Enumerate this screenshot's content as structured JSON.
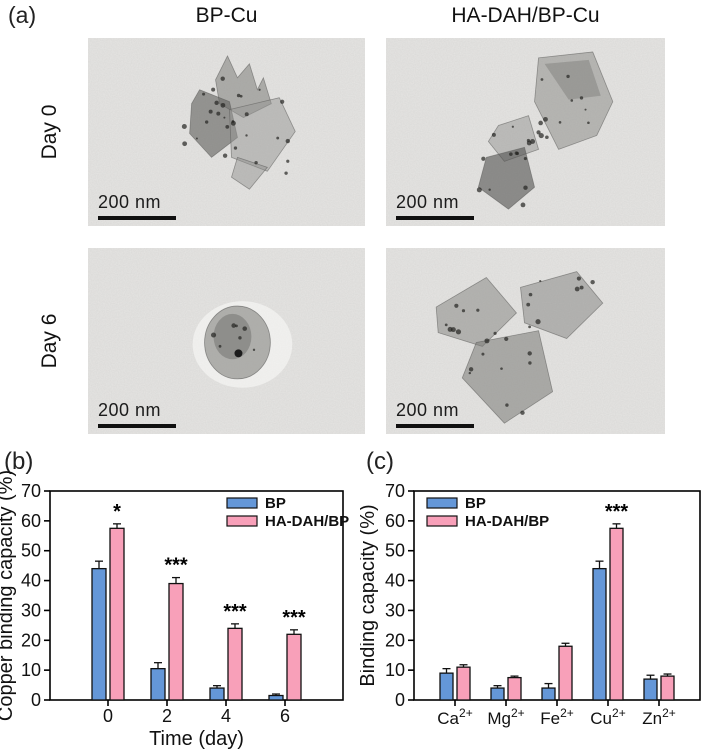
{
  "figure": {
    "panel_a": {
      "label": "(a)",
      "column_headers": [
        "BP-Cu",
        "HA-DAH/BP-Cu"
      ],
      "row_labels": [
        "Day 0",
        "Day 6"
      ],
      "scale_bar_label": "200 nm"
    },
    "panel_b": {
      "label": "(b)"
    },
    "panel_c": {
      "label": "(c)"
    }
  },
  "colors": {
    "bp_blue": "#6497d8",
    "hadah_pink": "#f8a0b9",
    "axis_black": "#000000"
  },
  "chart_data": [
    {
      "id": "b",
      "type": "bar",
      "title": "",
      "xlabel": "Time (day)",
      "ylabel": "Copper binding capacity (%)",
      "ylim": [
        0,
        70
      ],
      "yticks": [
        0,
        10,
        20,
        30,
        40,
        50,
        60,
        70
      ],
      "categories": [
        "0",
        "2",
        "4",
        "6"
      ],
      "series": [
        {
          "name": "BP",
          "color": "#6497d8",
          "values": [
            44,
            10.5,
            4,
            1.5
          ],
          "errors": [
            2.5,
            2,
            0.8,
            0.5
          ]
        },
        {
          "name": "HA-DAH/BP",
          "color": "#f8a0b9",
          "values": [
            57.5,
            39,
            24,
            22
          ],
          "errors": [
            1.5,
            2,
            1.5,
            1.5
          ]
        }
      ],
      "significance": [
        "*",
        "***",
        "***",
        "***"
      ],
      "legend_position": "top-right",
      "grid": false
    },
    {
      "id": "c",
      "type": "bar",
      "title": "",
      "xlabel": "",
      "ylabel": "Binding capacity (%)",
      "ylim": [
        0,
        70
      ],
      "yticks": [
        0,
        10,
        20,
        30,
        40,
        50,
        60,
        70
      ],
      "categories": [
        {
          "base": "Ca",
          "sup": "2+"
        },
        {
          "base": "Mg",
          "sup": "2+"
        },
        {
          "base": "Fe",
          "sup": "2+"
        },
        {
          "base": "Cu",
          "sup": "2+"
        },
        {
          "base": "Zn",
          "sup": "2+"
        }
      ],
      "series": [
        {
          "name": "BP",
          "color": "#6497d8",
          "values": [
            9,
            4,
            4,
            44,
            7
          ],
          "errors": [
            1.5,
            0.8,
            1.5,
            2.5,
            1.3
          ]
        },
        {
          "name": "HA-DAH/BP",
          "color": "#f8a0b9",
          "values": [
            11,
            7.5,
            18,
            57.5,
            8
          ],
          "errors": [
            0.8,
            0.5,
            1,
            1.5,
            0.7
          ]
        }
      ],
      "significance": [
        "",
        "",
        "",
        "***",
        ""
      ],
      "legend_position": "top-left",
      "grid": false
    }
  ]
}
